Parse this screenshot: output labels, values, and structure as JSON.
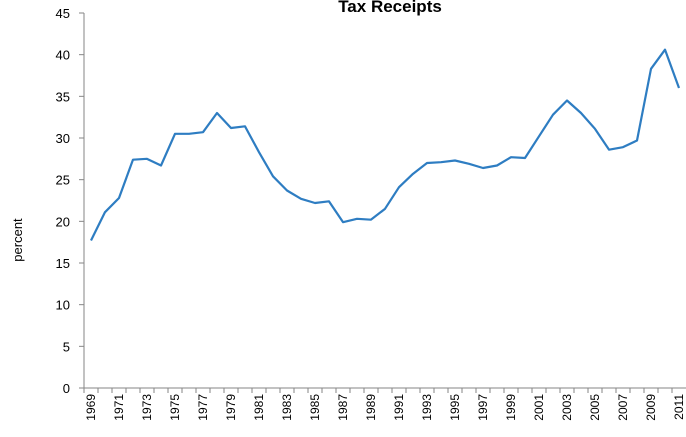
{
  "chart_data": {
    "type": "line",
    "title": "Tax Receipts",
    "y_label": "percent",
    "categories": [
      "1969",
      null,
      "1971",
      null,
      "1973",
      null,
      "1975",
      null,
      "1977",
      null,
      "1979",
      null,
      "1981",
      null,
      "1983",
      null,
      "1985",
      null,
      "1987",
      null,
      "1989",
      null,
      "1991",
      null,
      "1993",
      null,
      "1995",
      null,
      "1997",
      null,
      "1999",
      null,
      "2001",
      null,
      "2003",
      null,
      "2005",
      null,
      "2007",
      null,
      "2009",
      null,
      "2011"
    ],
    "series": [
      {
        "color": "#2e7dc2",
        "values": [
          17.7,
          21.1,
          22.8,
          27.4,
          27.5,
          26.7,
          30.5,
          30.5,
          30.7,
          33.0,
          31.2,
          31.4,
          28.3,
          25.4,
          23.7,
          22.7,
          22.2,
          22.4,
          19.9,
          20.3,
          20.2,
          21.5,
          24.1,
          25.7,
          27.0,
          27.1,
          27.3,
          26.9,
          26.4,
          26.7,
          27.7,
          27.6,
          30.2,
          32.8,
          34.5,
          33.0,
          31.1,
          28.6,
          28.9,
          29.7,
          38.3,
          40.6,
          36.0
        ]
      }
    ],
    "ylim": [
      0,
      45
    ],
    "yticks": [
      0,
      5,
      10,
      15,
      20,
      25,
      30,
      35,
      40,
      45
    ],
    "grid": false
  }
}
